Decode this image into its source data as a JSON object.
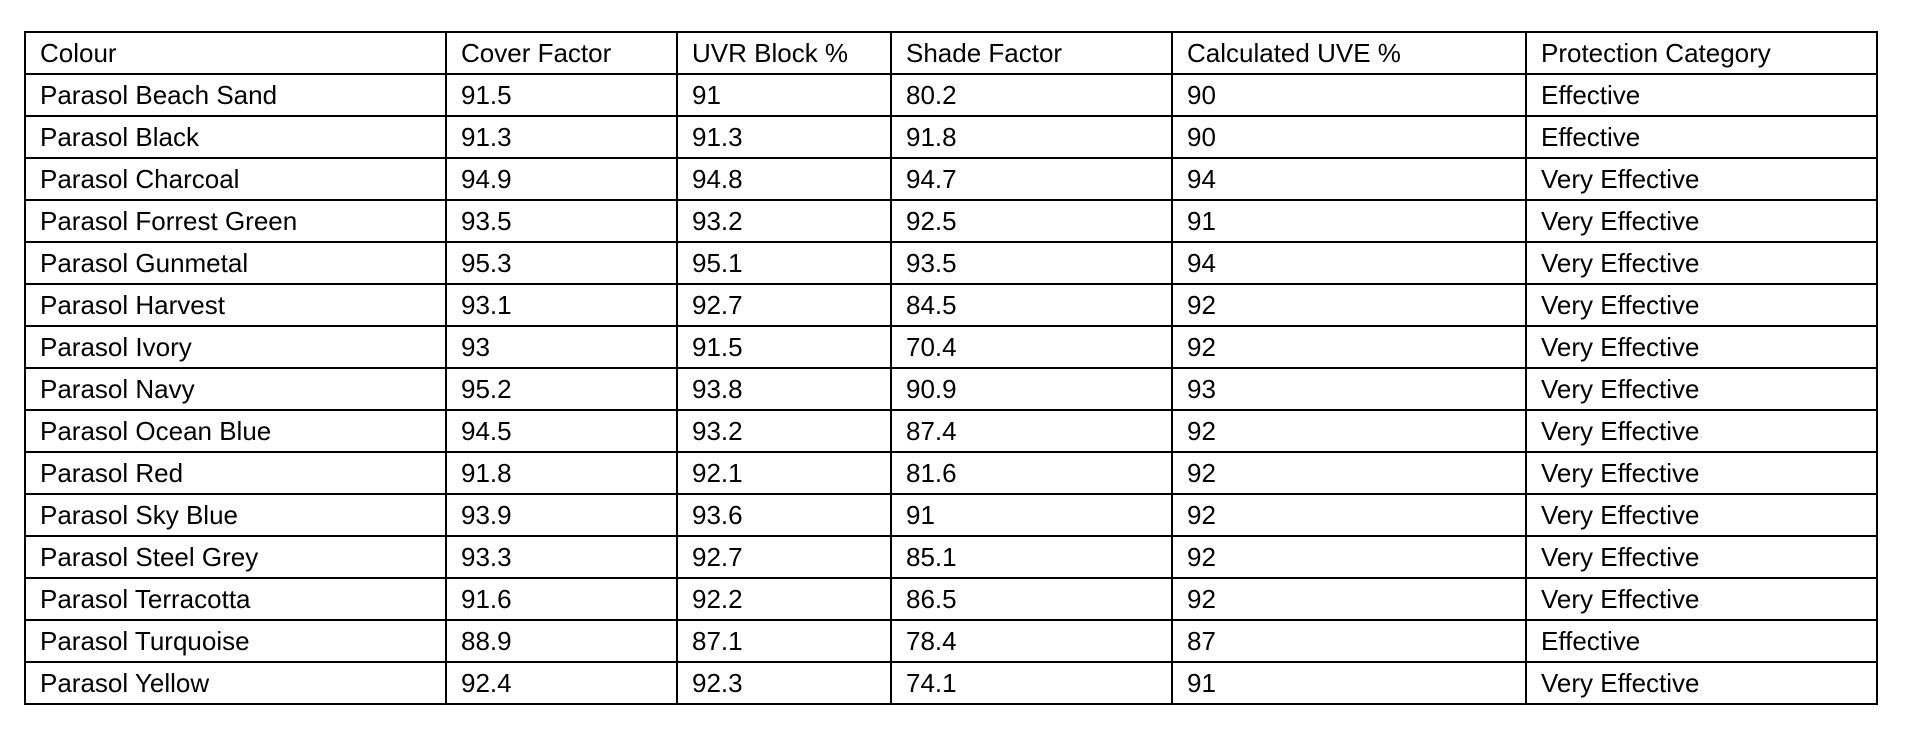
{
  "table": {
    "headers": [
      "Colour",
      "Cover Factor",
      "UVR Block %",
      "Shade Factor",
      "Calculated UVE %",
      "Protection Category"
    ],
    "rows": [
      [
        "Parasol Beach Sand",
        "91.5",
        "91",
        "80.2",
        "90",
        "Effective"
      ],
      [
        "Parasol Black",
        "91.3",
        "91.3",
        "91.8",
        "90",
        "Effective"
      ],
      [
        "Parasol Charcoal",
        "94.9",
        "94.8",
        "94.7",
        "94",
        "Very Effective"
      ],
      [
        "Parasol Forrest Green",
        "93.5",
        "93.2",
        "92.5",
        "91",
        "Very Effective"
      ],
      [
        "Parasol Gunmetal",
        "95.3",
        "95.1",
        "93.5",
        "94",
        "Very Effective"
      ],
      [
        "Parasol Harvest",
        "93.1",
        "92.7",
        "84.5",
        "92",
        "Very Effective"
      ],
      [
        "Parasol Ivory",
        "93",
        "91.5",
        "70.4",
        "92",
        "Very Effective"
      ],
      [
        "Parasol Navy",
        "95.2",
        "93.8",
        "90.9",
        "93",
        "Very Effective"
      ],
      [
        "Parasol Ocean Blue",
        "94.5",
        "93.2",
        "87.4",
        "92",
        "Very Effective"
      ],
      [
        "Parasol Red",
        "91.8",
        "92.1",
        "81.6",
        "92",
        "Very Effective"
      ],
      [
        "Parasol Sky Blue",
        "93.9",
        "93.6",
        "91",
        "92",
        "Very Effective"
      ],
      [
        "Parasol Steel Grey",
        "93.3",
        "92.7",
        "85.1",
        "92",
        "Very Effective"
      ],
      [
        "Parasol Terracotta",
        "91.6",
        "92.2",
        "86.5",
        "92",
        "Very Effective"
      ],
      [
        "Parasol Turquoise",
        "88.9",
        "87.1",
        "78.4",
        "87",
        "Effective"
      ],
      [
        "Parasol Yellow",
        "92.4",
        "92.3",
        "74.1",
        "91",
        "Very Effective"
      ]
    ]
  }
}
